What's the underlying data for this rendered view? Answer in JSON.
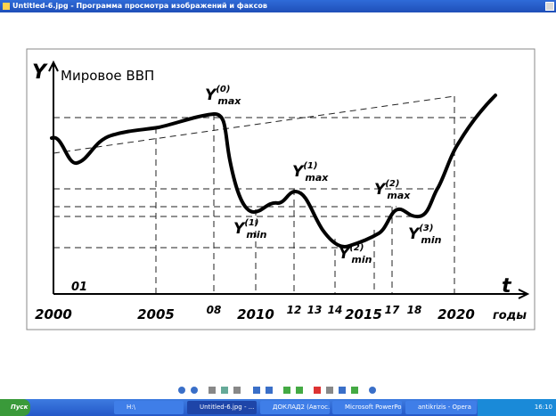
{
  "window": {
    "title": "Untitled-6.jpg - Программа просмотра изображений и факсов"
  },
  "image": {
    "y_label": "Y",
    "title": "Мировое ВВП",
    "x_label": "t",
    "x_unit": "годы",
    "marker": "01",
    "x_labels": [
      "2000",
      "2005",
      "08",
      "2010",
      "12",
      "13",
      "14",
      "2015",
      "17",
      "18",
      "2020"
    ],
    "annotations": [
      {
        "base": "Y",
        "sub": "max",
        "sup": "(0)"
      },
      {
        "base": "Y",
        "sub": "max",
        "sup": "(1)"
      },
      {
        "base": "Y",
        "sub": "min",
        "sup": "(1)"
      },
      {
        "base": "Y",
        "sub": "min",
        "sup": "(2)"
      },
      {
        "base": "Y",
        "sub": "max",
        "sup": "(2)"
      },
      {
        "base": "Y",
        "sub": "min",
        "sup": "(3)"
      }
    ]
  },
  "taskbar": {
    "start": "Пуск",
    "items": [
      "H:\\",
      "Untitled-6.jpg - ...",
      "ДОКЛАД2 (Автос...",
      "Microsoft PowerPoi...",
      "antikrizis - Opera"
    ],
    "clock": "16:10"
  }
}
